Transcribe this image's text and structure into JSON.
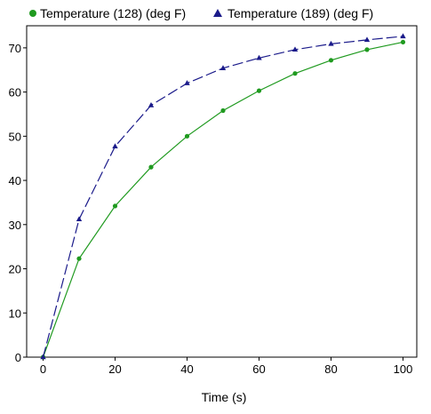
{
  "chart_data": {
    "type": "line",
    "title": "",
    "xlabel": "Time (s)",
    "ylabel": "",
    "xlim": [
      0,
      100
    ],
    "ylim": [
      0,
      75
    ],
    "x_ticks": [
      0,
      20,
      40,
      60,
      80,
      100
    ],
    "y_ticks": [
      0,
      10,
      20,
      30,
      40,
      50,
      60,
      70
    ],
    "x_tick_labels": [
      "0",
      "20",
      "40",
      "60",
      "80",
      "100"
    ],
    "y_tick_labels": [
      "0",
      "10",
      "20",
      "30",
      "40",
      "50",
      "60",
      "70"
    ],
    "grid": true,
    "legend_position": "top",
    "series": [
      {
        "name": "Temperature (128) (deg F)",
        "color": "#1f9a1f",
        "marker": "circle",
        "line_style": "solid",
        "x": [
          0,
          10,
          20,
          30,
          40,
          50,
          60,
          70,
          80,
          90,
          100
        ],
        "y": [
          0,
          22.3,
          34.2,
          43.0,
          50.0,
          55.8,
          60.3,
          64.2,
          67.2,
          69.6,
          71.3
        ]
      },
      {
        "name": "Temperature (189) (deg F)",
        "color": "#1a1a8a",
        "marker": "triangle",
        "line_style": "dashed",
        "x": [
          0,
          10,
          20,
          30,
          40,
          50,
          60,
          70,
          80,
          90,
          100
        ],
        "y": [
          0,
          31.2,
          47.7,
          57.0,
          62.0,
          65.4,
          67.7,
          69.6,
          70.9,
          71.8,
          72.6
        ]
      }
    ]
  }
}
